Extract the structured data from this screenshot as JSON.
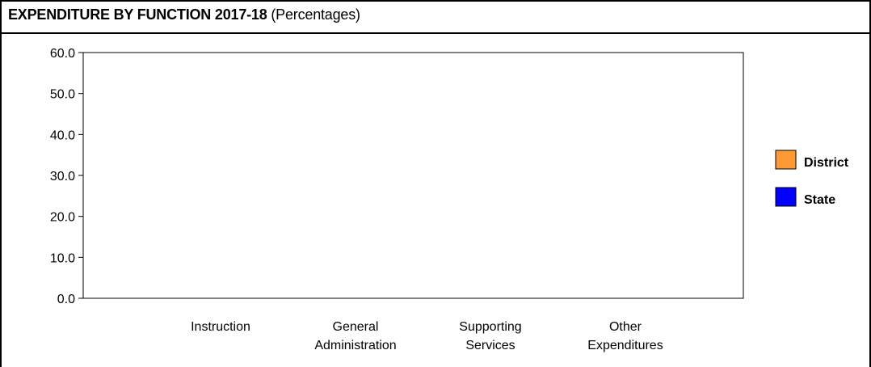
{
  "chart_data": {
    "type": "bar",
    "title": "EXPENDITURE BY FUNCTION 2017-18",
    "subtitle": "(Percentages)",
    "categories": [
      [
        "Instruction"
      ],
      [
        "General",
        "Administration"
      ],
      [
        "Supporting",
        "Services"
      ],
      [
        "Other",
        "Expenditures"
      ]
    ],
    "series": [
      {
        "name": "District",
        "color": "#FF9933",
        "values": [
          null,
          null,
          null,
          null
        ]
      },
      {
        "name": "State",
        "color": "#0000FF",
        "values": [
          null,
          null,
          null,
          null
        ]
      }
    ],
    "ylim": [
      0,
      60
    ],
    "yticks": [
      "0.0",
      "10.0",
      "20.0",
      "30.0",
      "40.0",
      "50.0",
      "60.0"
    ],
    "grid": false,
    "legend_position": "right"
  }
}
